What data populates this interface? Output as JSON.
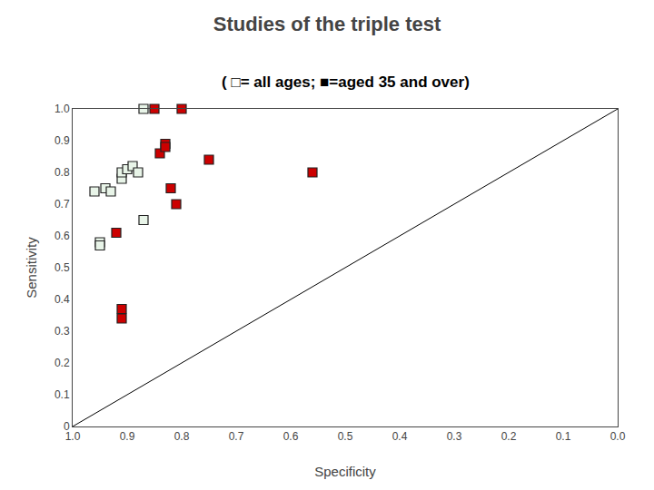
{
  "chart_data": {
    "type": "scatter",
    "title": "Studies of the triple test",
    "subtitle": "( □= all ages; ■=aged 35 and over)",
    "xlabel": "Specificity",
    "ylabel": "Sensitivity",
    "xlim": [
      1.0,
      0.0
    ],
    "ylim": [
      0.0,
      1.0
    ],
    "xticks": [
      {
        "value": 1.0,
        "label": "1.0"
      },
      0.9,
      0.8,
      0.7,
      0.6,
      0.5,
      0.4,
      0.3,
      0.2,
      0.1,
      {
        "value": 0.0,
        "label": "0.0"
      }
    ],
    "yticks": [
      0,
      0.1,
      0.2,
      0.3,
      0.4,
      0.5,
      0.6,
      0.7,
      0.8,
      0.9,
      {
        "value": 1.0,
        "label": "1.0"
      }
    ],
    "grid": false,
    "legend": false,
    "series": [
      {
        "color": "#e8f4e8",
        "marker": "square",
        "x": [
          0.96,
          0.94,
          0.93,
          0.91,
          0.91,
          0.9,
          0.89,
          0.88,
          0.87,
          0.87,
          0.95,
          0.95
        ],
        "values": [
          0.74,
          0.75,
          0.74,
          0.78,
          0.8,
          0.81,
          0.82,
          0.8,
          0.65,
          1.0,
          0.58,
          0.57
        ]
      },
      {
        "color": "#cc0000",
        "marker": "square",
        "x": [
          0.85,
          0.8,
          0.84,
          0.83,
          0.83,
          0.82,
          0.81,
          0.75,
          0.56,
          0.92,
          0.91,
          0.91
        ],
        "values": [
          1.0,
          1.0,
          0.86,
          0.89,
          0.88,
          0.75,
          0.7,
          0.84,
          0.8,
          0.61,
          0.37,
          0.34
        ]
      }
    ]
  }
}
